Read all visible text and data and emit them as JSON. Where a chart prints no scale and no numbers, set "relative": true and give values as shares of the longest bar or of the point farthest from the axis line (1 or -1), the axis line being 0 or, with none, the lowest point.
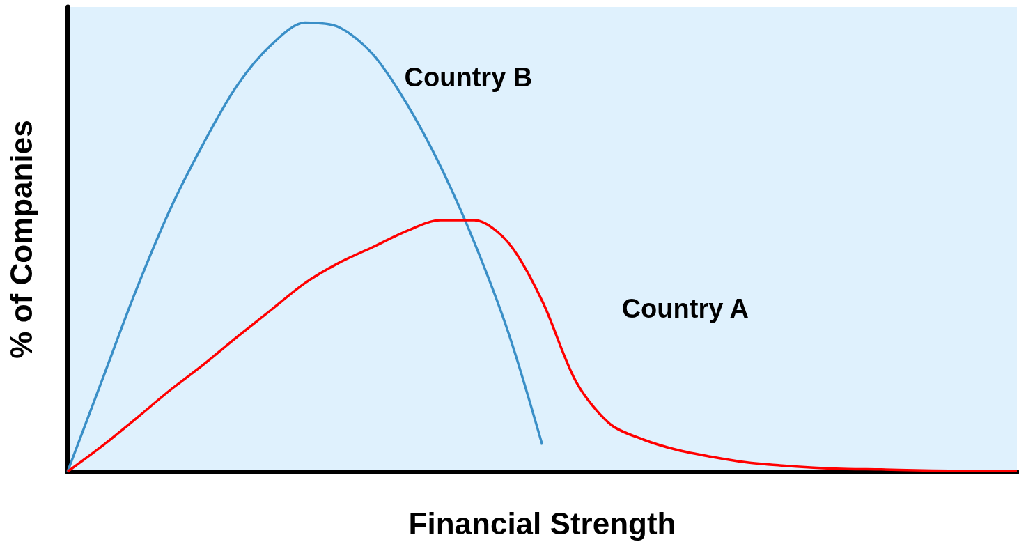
{
  "chart_data": {
    "type": "line",
    "relative": true,
    "marker": "none",
    "xlabel": "Financial Strength",
    "ylabel": "% of Companies",
    "categories": [
      null,
      null,
      null,
      null,
      null,
      null,
      null,
      null,
      null,
      null,
      null,
      null,
      null,
      null,
      null,
      null,
      null,
      null,
      null,
      null,
      null,
      null,
      null,
      null,
      null,
      null,
      null,
      null,
      null
    ],
    "series": [
      {
        "name": "Country B",
        "color": "#3a8fc7",
        "values": [
          0,
          0.2,
          0.4,
          0.58,
          0.73,
          0.86,
          0.95,
          1,
          0.99,
          0.93,
          0.82,
          0.68,
          0.51,
          0.31,
          0.06,
          null,
          null,
          null,
          null,
          null,
          null,
          null,
          null,
          null,
          null,
          null,
          null,
          null,
          null
        ]
      },
      {
        "name": "Country A",
        "color": "#ff0000",
        "values": [
          0,
          0.056,
          0.117,
          0.18,
          0.238,
          0.3,
          0.36,
          0.42,
          0.465,
          0.5,
          0.536,
          0.56,
          0.56,
          0.51,
          0.38,
          0.2,
          0.106,
          0.071,
          0.048,
          0.033,
          0.021,
          0.014,
          0.009,
          0.006,
          0.005,
          0.003,
          0.002,
          0.001,
          0.001
        ]
      }
    ]
  }
}
